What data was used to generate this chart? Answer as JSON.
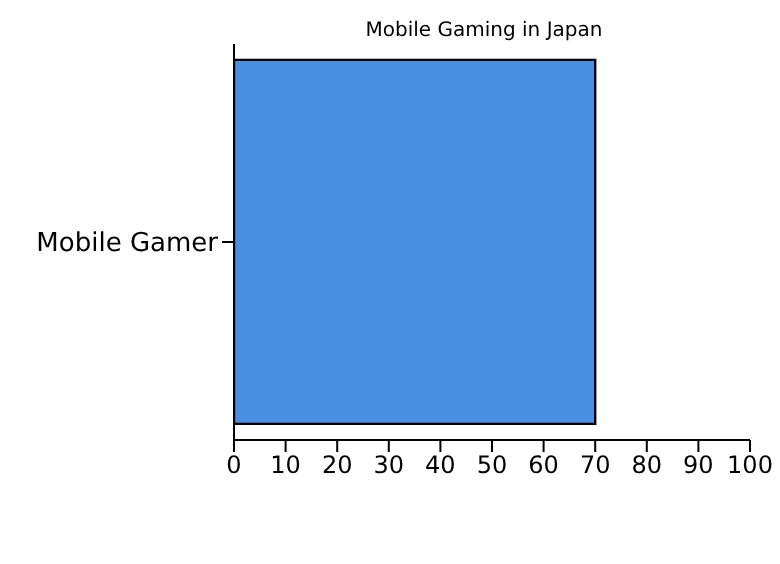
{
  "chart_data": {
    "type": "bar",
    "title": "Mobile Gaming in Japan",
    "orientation": "horizontal",
    "categories": [
      "Mobile Gamer"
    ],
    "values": [
      70
    ],
    "color": "#4a90e2",
    "xlim": [
      0,
      100
    ],
    "xticks": [
      0,
      10,
      20,
      30,
      40,
      50,
      60,
      70,
      80,
      90,
      100
    ],
    "grid": false
  }
}
